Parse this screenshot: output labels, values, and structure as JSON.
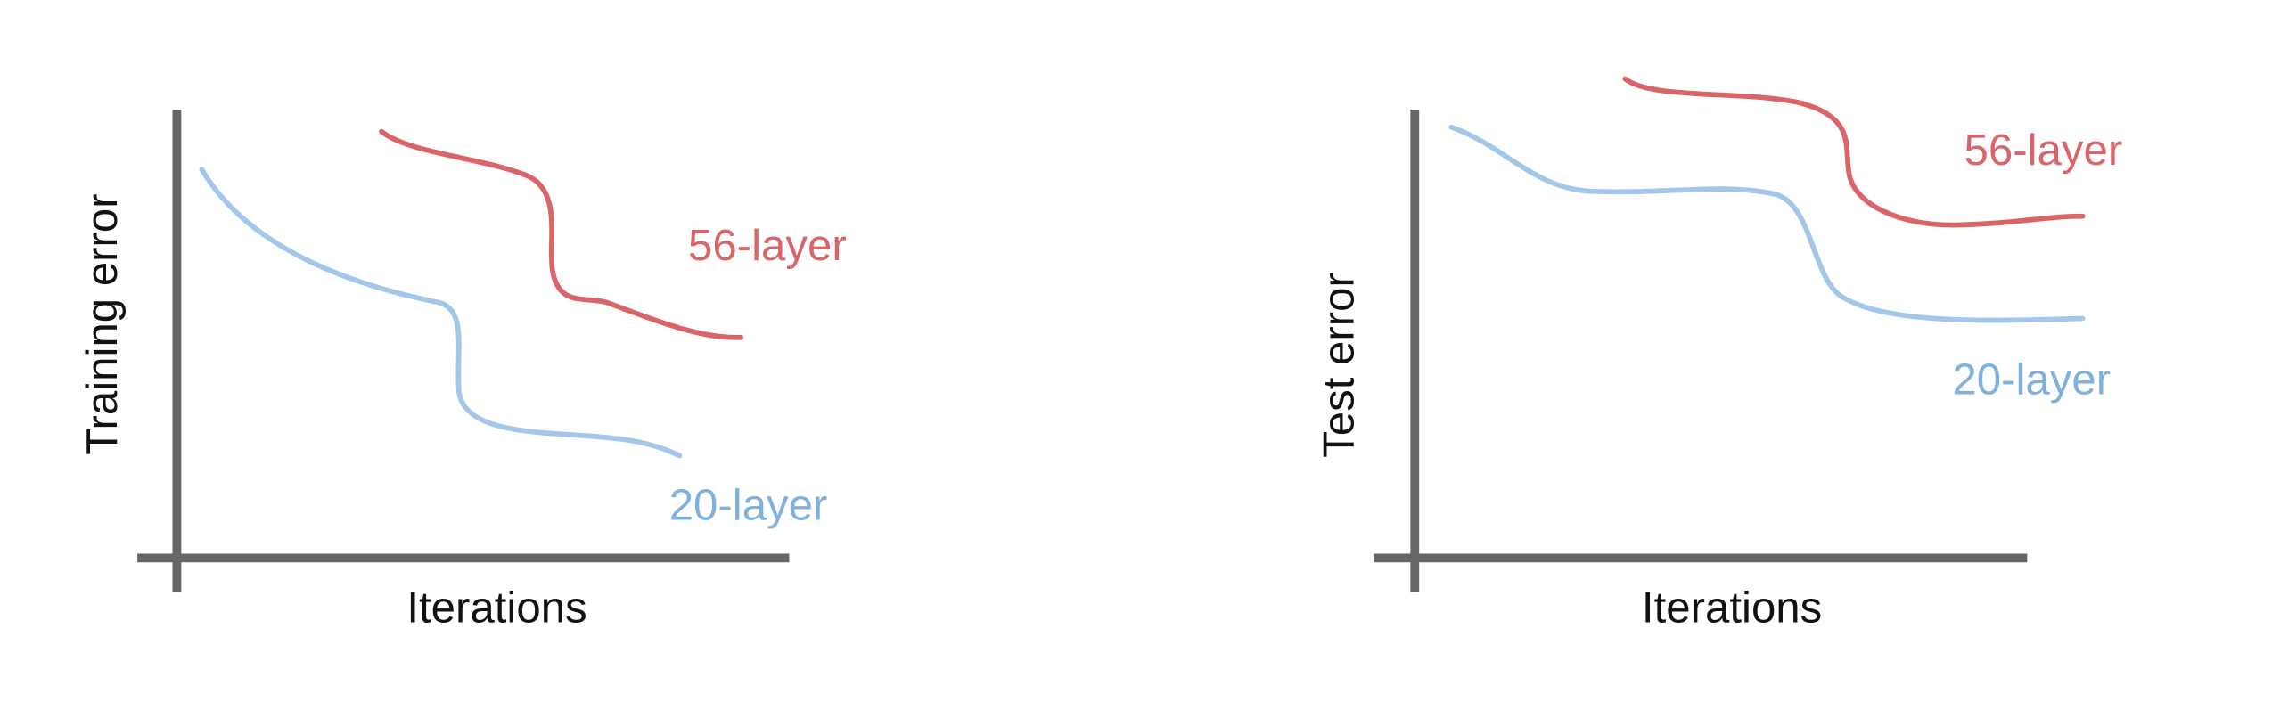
{
  "charts": [
    {
      "y_label": "Training error",
      "x_label": "Iterations",
      "series": [
        {
          "name": "56-layer"
        },
        {
          "name": "20-layer"
        }
      ]
    },
    {
      "y_label": "Test error",
      "x_label": "Iterations",
      "series": [
        {
          "name": "56-layer"
        },
        {
          "name": "20-layer"
        }
      ]
    }
  ]
}
